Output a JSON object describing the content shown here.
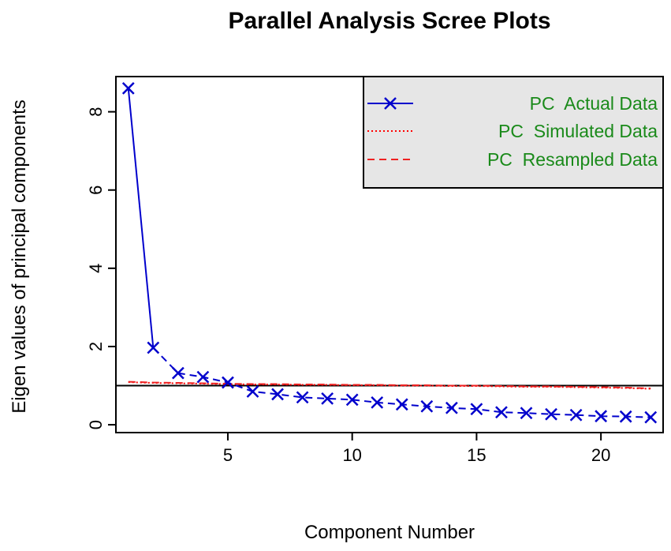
{
  "chart_data": {
    "type": "line",
    "title": "Parallel Analysis Scree Plots",
    "xlabel": "Component Number",
    "ylabel": "Eigen values of  principal components",
    "xlim": [
      0.5,
      22.5
    ],
    "ylim": [
      -0.2,
      8.9
    ],
    "xticks": [
      5,
      10,
      15,
      20
    ],
    "yticks": [
      0,
      2,
      4,
      6,
      8
    ],
    "x": [
      1,
      2,
      3,
      4,
      5,
      6,
      7,
      8,
      9,
      10,
      11,
      12,
      13,
      14,
      15,
      16,
      17,
      18,
      19,
      20,
      21,
      22
    ],
    "series": [
      {
        "name": "PC  Actual Data",
        "color": "#0000cc",
        "style": "solid",
        "marker": "x",
        "values": [
          8.6,
          1.97,
          1.32,
          1.22,
          1.08,
          0.85,
          0.78,
          0.7,
          0.67,
          0.64,
          0.57,
          0.52,
          0.47,
          0.43,
          0.4,
          0.32,
          0.3,
          0.27,
          0.25,
          0.22,
          0.21,
          0.19
        ]
      },
      {
        "name": "PC  Simulated Data",
        "color": "#ff0000",
        "style": "dotted",
        "values": [
          1.09,
          1.07,
          1.06,
          1.05,
          1.04,
          1.03,
          1.03,
          1.02,
          1.02,
          1.01,
          1.01,
          1.0,
          1.0,
          0.99,
          0.99,
          0.98,
          0.97,
          0.97,
          0.96,
          0.95,
          0.94,
          0.92
        ]
      },
      {
        "name": "PC  Resampled Data",
        "color": "#ee2222",
        "style": "dashed",
        "values": [
          1.1,
          1.08,
          1.07,
          1.06,
          1.05,
          1.04,
          1.04,
          1.03,
          1.03,
          1.02,
          1.02,
          1.01,
          1.01,
          1.0,
          1.0,
          0.99,
          0.98,
          0.98,
          0.97,
          0.96,
          0.95,
          0.93
        ]
      }
    ],
    "reference_line": 1,
    "legend_placement": "top-right",
    "legend_background": "#e6e6e6",
    "legend_text_color": "#1a8a1a",
    "grid": false
  }
}
